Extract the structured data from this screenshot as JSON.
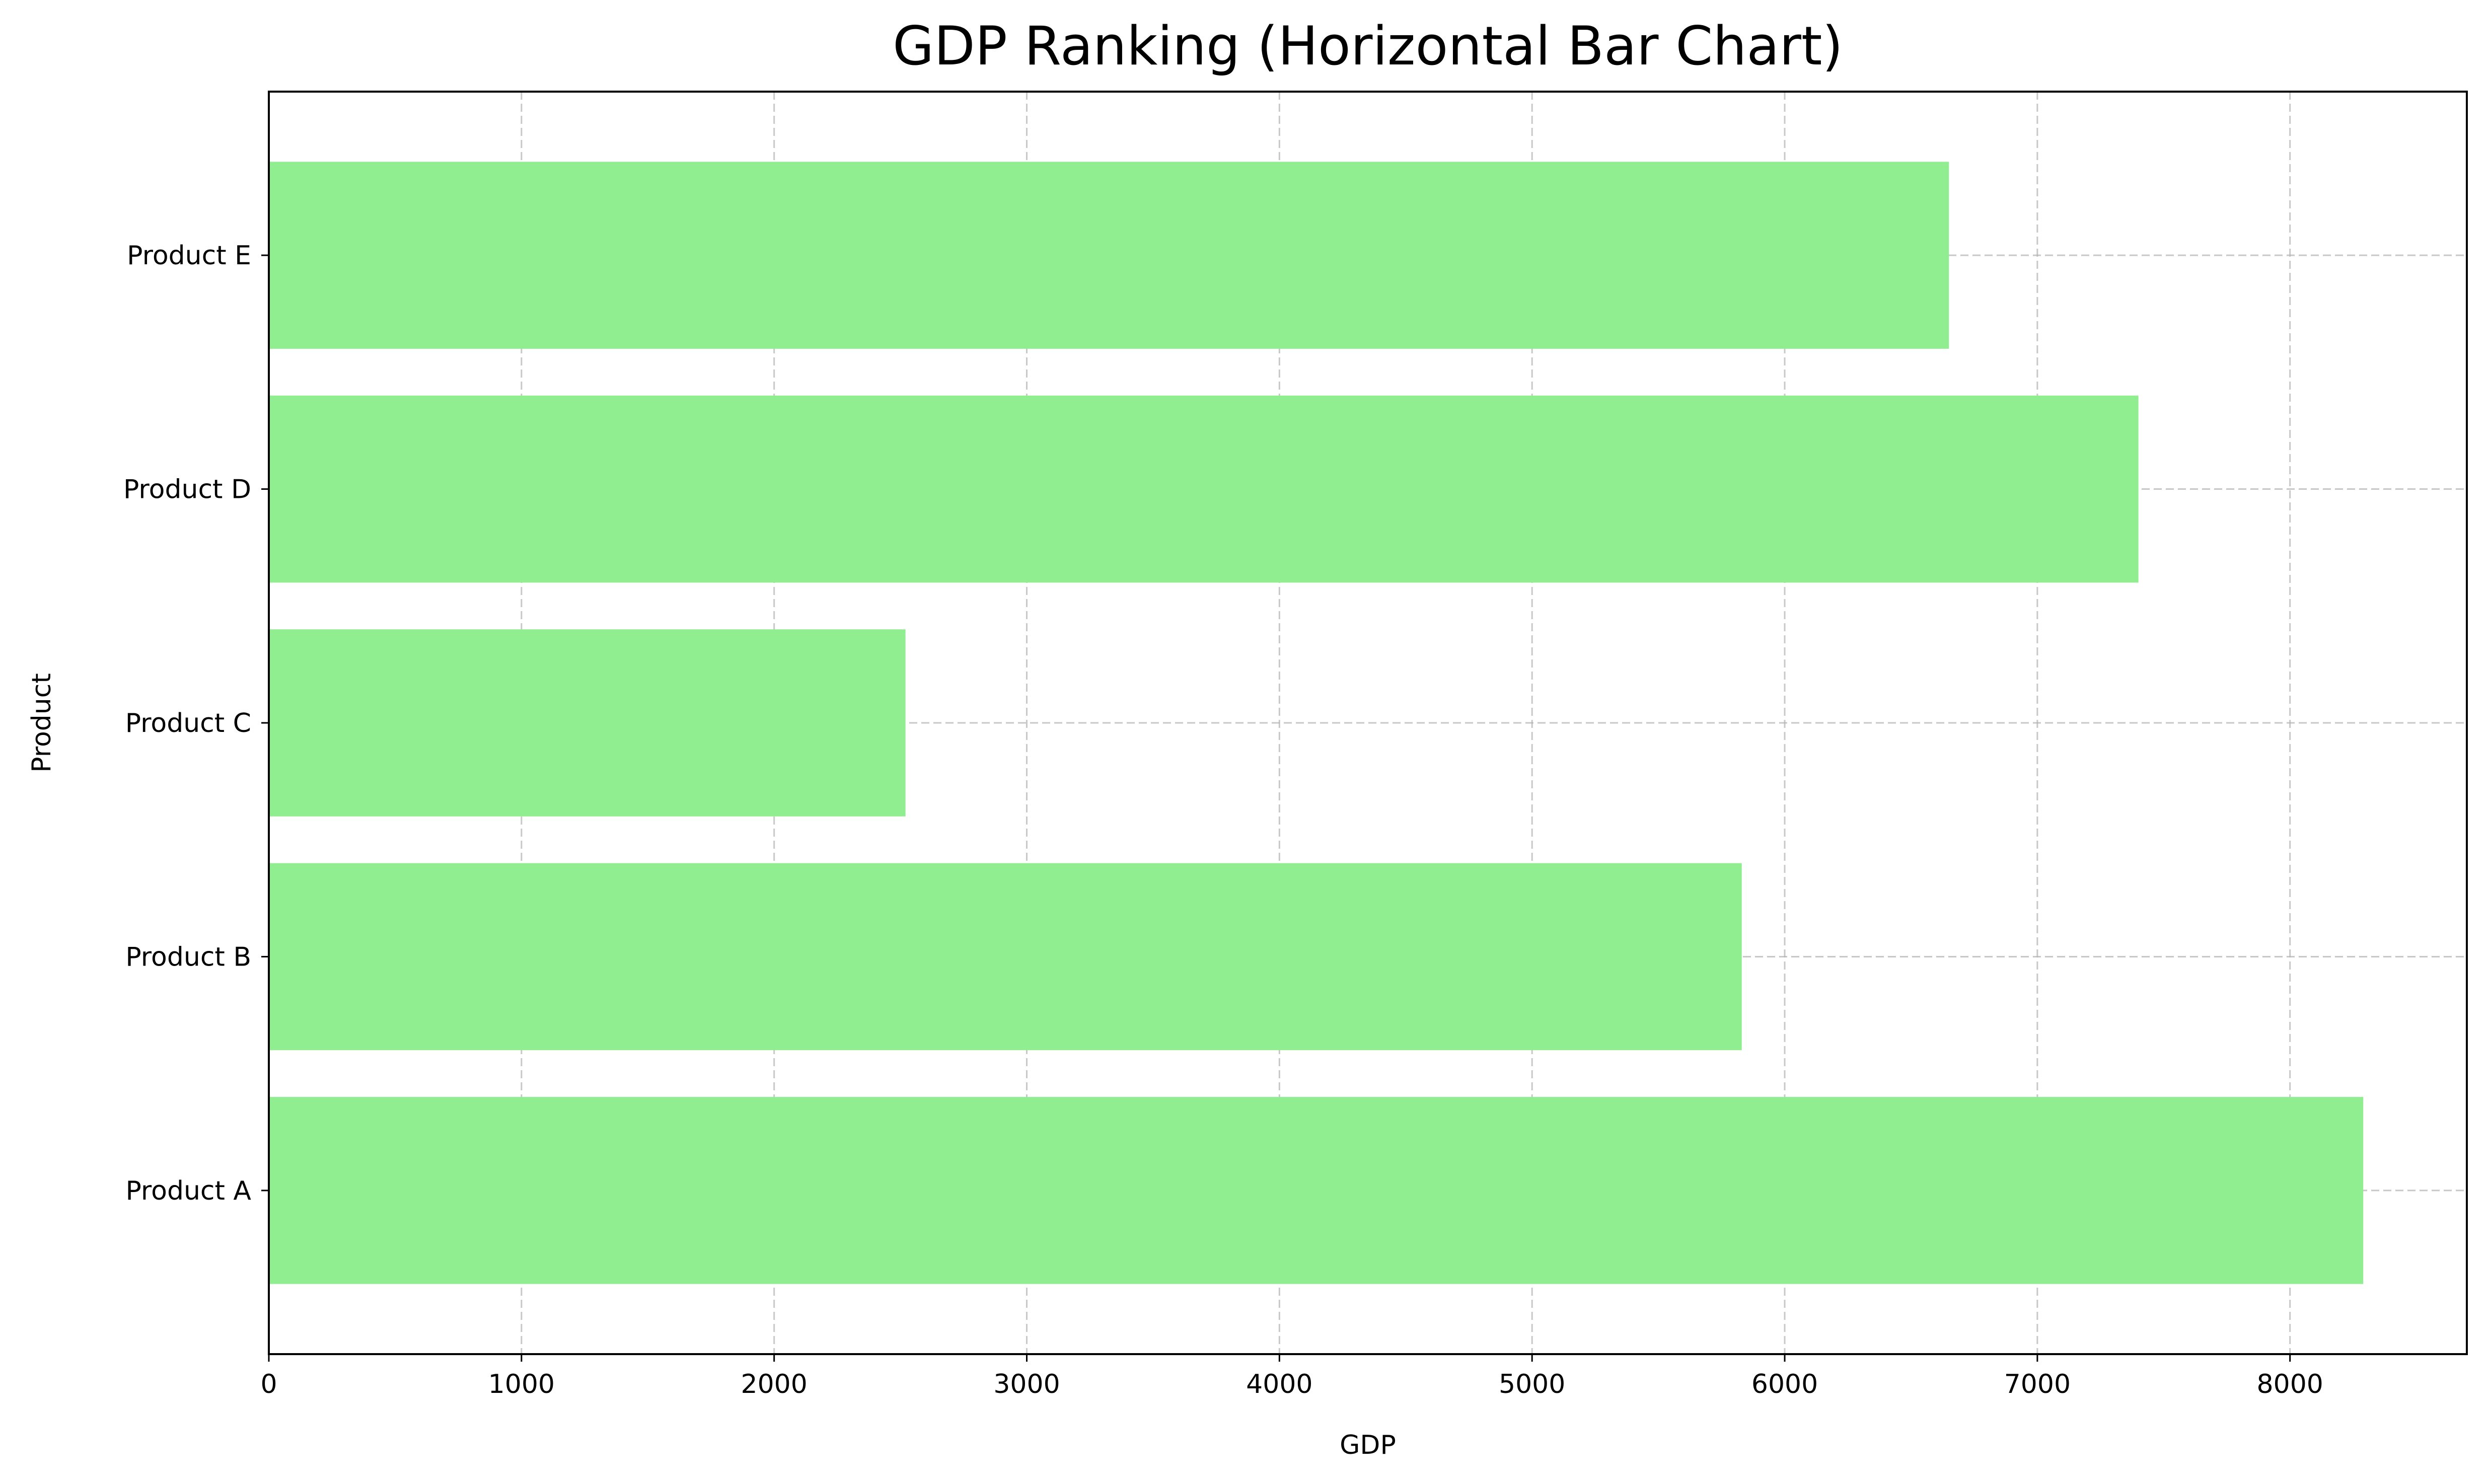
{
  "chart_data": {
    "type": "bar",
    "orientation": "horizontal",
    "title": "GDP Ranking (Horizontal Bar Chart)",
    "xlabel": "GDP",
    "ylabel": "Product",
    "categories": [
      "Product A",
      "Product B",
      "Product C",
      "Product D",
      "Product E"
    ],
    "values": [
      8290,
      5830,
      2520,
      7400,
      6650
    ],
    "xlim": [
      0,
      8700
    ],
    "xticks": [
      0,
      1000,
      2000,
      3000,
      4000,
      5000,
      6000,
      7000,
      8000
    ],
    "xtick_labels": [
      "0",
      "1000",
      "2000",
      "3000",
      "4000",
      "5000",
      "6000",
      "7000",
      "8000"
    ],
    "grid": true,
    "grid_style": "dashed",
    "bar_color": "#90EE90",
    "legend": "none"
  }
}
